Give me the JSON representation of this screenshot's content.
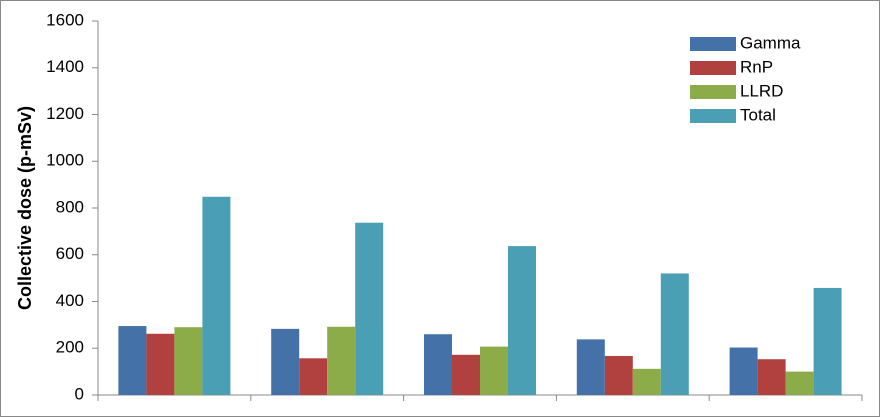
{
  "chart_data": {
    "type": "bar",
    "y_label": "Collective dose (p-mSv)",
    "categories": [
      null,
      null,
      null,
      null,
      null
    ],
    "series": [
      {
        "name": "Gamma",
        "color": "#4472a8",
        "values": [
          295,
          283,
          260,
          238,
          203
        ]
      },
      {
        "name": "RnP",
        "color": "#b0413e",
        "values": [
          262,
          157,
          172,
          167,
          153
        ]
      },
      {
        "name": "LLRD",
        "color": "#8cac4a",
        "values": [
          290,
          292,
          207,
          112,
          100
        ]
      },
      {
        "name": "Total",
        "color": "#4a9fb5",
        "values": [
          848,
          737,
          637,
          520,
          458
        ]
      }
    ],
    "ylim": [
      0,
      1600
    ],
    "yticks": [
      0,
      200,
      400,
      600,
      800,
      1000,
      1200,
      1400,
      1600
    ],
    "grid": false,
    "legend": "top-right"
  }
}
